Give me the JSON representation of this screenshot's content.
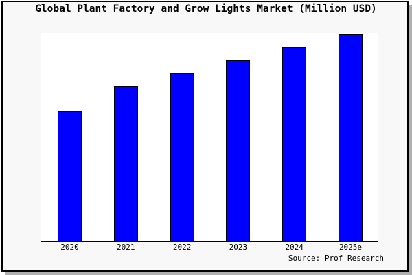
{
  "title": "Global Plant Factory and Grow Lights Market (Million USD)",
  "source": "Source: Prof Research",
  "colors": {
    "bar_fill": "#0000ff",
    "bar_border": "#000000",
    "panel_bg": "#f8f8f8",
    "plot_bg": "#ffffff",
    "axis": "#000000",
    "shadow": "#b0b0b0"
  },
  "chart_data": {
    "type": "bar",
    "title": "Global Plant Factory and Grow Lights Market (Million USD)",
    "categories": [
      "2020",
      "2021",
      "2022",
      "2023",
      "2024",
      "2025e"
    ],
    "values": [
      62.3,
      74.5,
      80.8,
      87.1,
      93.0,
      99.3
    ],
    "value_note": "y-axis shows no ticks or numeric labels; values are relative bar heights in % of the y-range",
    "xlabel": "",
    "ylabel": "",
    "ylim": [
      0,
      100
    ],
    "grid": false,
    "legend": false,
    "series_color": "#0000ff",
    "annotation": "Source: Prof Research"
  }
}
